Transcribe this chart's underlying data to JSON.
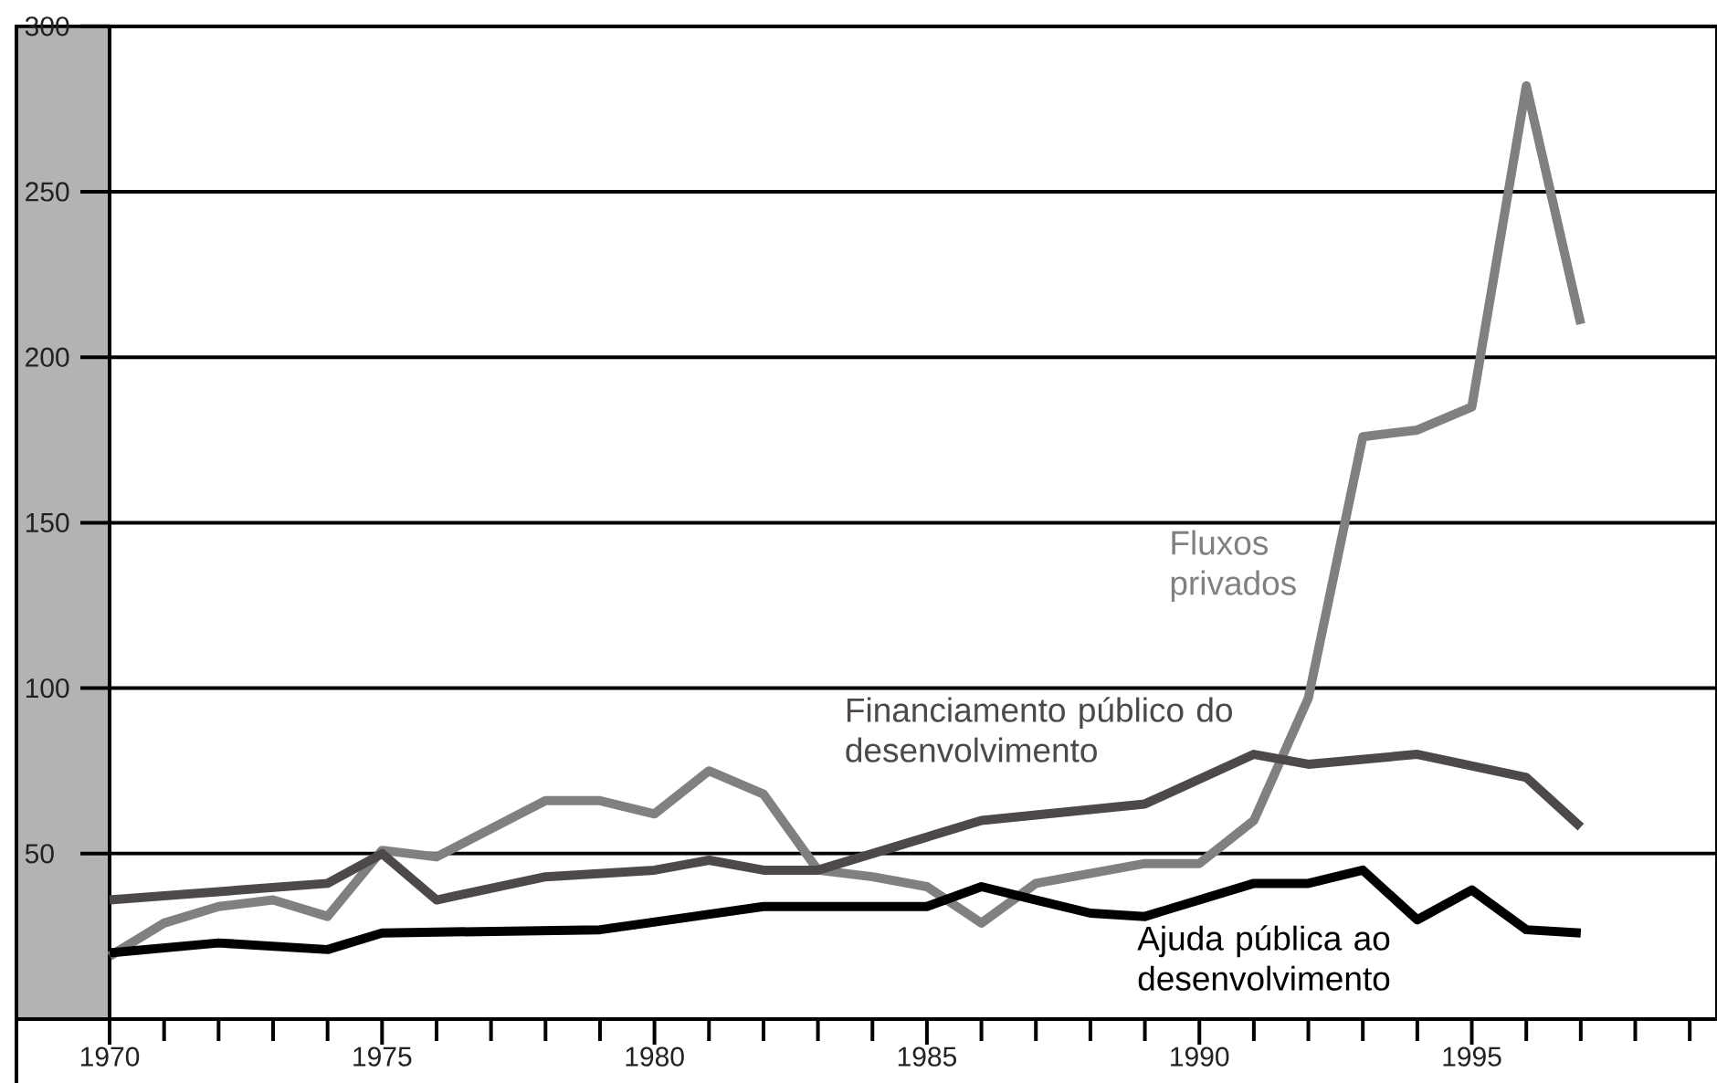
{
  "chart_data": {
    "type": "line",
    "series": [
      {
        "name": "Fluxos privados",
        "color": "#808080",
        "x": [
          1970,
          1971,
          1972,
          1973,
          1974,
          1975,
          1976,
          1978,
          1979,
          1980,
          1981,
          1982,
          1983,
          1984,
          1985,
          1986,
          1987,
          1989,
          1990,
          1991,
          1992,
          1993,
          1994,
          1995,
          1996,
          1997
        ],
        "values": [
          19,
          29,
          34,
          36,
          31,
          51,
          49,
          66,
          66,
          62,
          75,
          68,
          45,
          43,
          40,
          29,
          41,
          47,
          47,
          60,
          97,
          176,
          178,
          185,
          282,
          210
        ]
      },
      {
        "name": "Financiamento público do desenvolvimento",
        "color": "#4d4949",
        "x": [
          1970,
          1974,
          1975,
          1976,
          1978,
          1980,
          1981,
          1982,
          1983,
          1986,
          1989,
          1991,
          1992,
          1994,
          1996,
          1997
        ],
        "values": [
          36,
          41,
          50,
          36,
          43,
          45,
          48,
          45,
          45,
          60,
          65,
          80,
          77,
          80,
          73,
          58
        ]
      },
      {
        "name": "Ajuda pública ao desenvolvimento",
        "color": "#000000",
        "x": [
          1970,
          1972,
          1974,
          1975,
          1979,
          1982,
          1985,
          1986,
          1987,
          1988,
          1989,
          1991,
          1992,
          1993,
          1994,
          1995,
          1996,
          1997
        ],
        "values": [
          20,
          23,
          21,
          26,
          27,
          34,
          34,
          40,
          36,
          32,
          31,
          41,
          41,
          45,
          30,
          39,
          27,
          26
        ]
      }
    ],
    "xlim": [
      1970,
      1999.5
    ],
    "xticks": [
      1970,
      {
        "value": 1971,
        "label": null
      },
      {
        "value": 1972,
        "label": null
      },
      {
        "value": 1973,
        "label": null
      },
      {
        "value": 1974,
        "label": null
      },
      1975,
      {
        "value": 1976,
        "label": null
      },
      {
        "value": 1977,
        "label": null
      },
      {
        "value": 1978,
        "label": null
      },
      {
        "value": 1979,
        "label": null
      },
      1980,
      {
        "value": 1981,
        "label": null
      },
      {
        "value": 1982,
        "label": null
      },
      {
        "value": 1983,
        "label": null
      },
      {
        "value": 1984,
        "label": null
      },
      1985,
      {
        "value": 1986,
        "label": null
      },
      {
        "value": 1987,
        "label": null
      },
      {
        "value": 1988,
        "label": null
      },
      {
        "value": 1989,
        "label": null
      },
      1990,
      {
        "value": 1991,
        "label": null
      },
      {
        "value": 1992,
        "label": null
      },
      {
        "value": 1993,
        "label": null
      },
      {
        "value": 1994,
        "label": null
      },
      1995,
      {
        "value": 1996,
        "label": null
      },
      {
        "value": 1997,
        "label": null
      },
      {
        "value": 1998,
        "label": null
      },
      {
        "value": 1999,
        "label": null
      }
    ],
    "ylim": [
      0,
      300
    ],
    "yticks": [
      50,
      100,
      150,
      200,
      250,
      300
    ],
    "grid": "y",
    "marker": "none",
    "line_style": "solid"
  }
}
